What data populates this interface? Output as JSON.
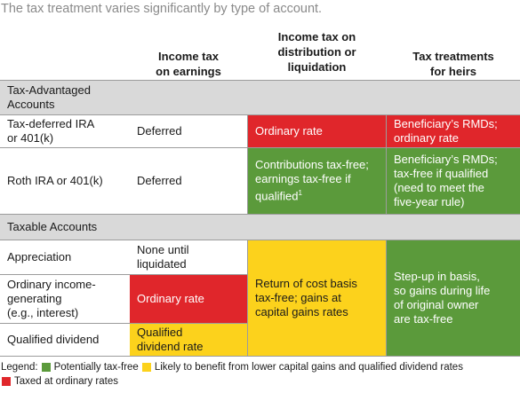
{
  "intro": "The tax treatment varies significantly by type of account.",
  "headers": {
    "col2": "Income tax\non earnings",
    "col3": "Income tax on\ndistribution or\nliquidation",
    "col4": "Tax treatments\nfor heirs"
  },
  "sections": {
    "advantaged": "Tax-Advantaged\nAccounts",
    "taxable": "Taxable Accounts"
  },
  "advantaged_rows": {
    "ira": {
      "label": "Tax-deferred IRA\nor 401(k)",
      "earnings": "Deferred",
      "distribution": "Ordinary rate",
      "heirs": "Beneficiary’s RMDs;\nordinary rate"
    },
    "roth": {
      "label": "Roth IRA or 401(k)",
      "earnings": "Deferred",
      "distribution_text": "Contributions tax-free;\nearnings tax-free if\nqualified",
      "distribution_sup": "1",
      "heirs": "Beneficiary’s RMDs;\ntax-free if qualified\n(need to meet the\nfive-year rule)"
    }
  },
  "taxable_rows": {
    "appreciation": {
      "label": "Appreciation",
      "earnings": "None until\nliquidated"
    },
    "ordinary": {
      "label": "Ordinary income-\ngenerating\n(e.g., interest)",
      "earnings": "Ordinary rate"
    },
    "dividend": {
      "label": "Qualified dividend",
      "earnings": "Qualified\ndividend rate"
    },
    "shared_distribution": "Return of cost basis\ntax-free; gains at\ncapital gains rates",
    "shared_heirs": "Step-up in basis,\nso gains during life\nof original owner\nare tax-free"
  },
  "legend": {
    "prefix": "Legend:",
    "green": "Potentially tax-free",
    "yellow": "Likely to benefit from lower capital gains and qualified dividend rates",
    "red": "Taxed at ordinary rates"
  },
  "colors": {
    "green": "#5b9a3b",
    "yellow": "#fcd21c",
    "red": "#e0262b",
    "section_gray": "#d9d9d9",
    "intro_gray": "#8a8a8a"
  }
}
